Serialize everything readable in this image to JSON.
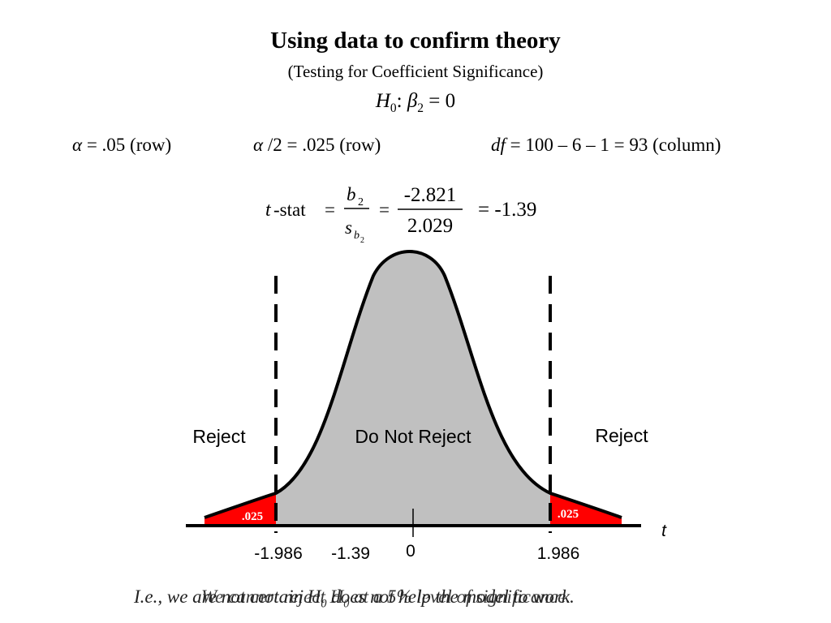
{
  "title": "Using data to confirm theory",
  "subtitle": "(Testing for Coefficient Significance)",
  "hypothesis": {
    "h": "H",
    "h_sub": "0",
    "colon": ": ",
    "beta": "β",
    "beta_sub": "2",
    "rest": " = 0"
  },
  "conditions": {
    "alpha_symbol": "α",
    "alpha_text": " = .05 (row)",
    "half_symbol": "α",
    "half_text": " /2 = .025 (row)",
    "df_symbol": "df",
    "df_text": " = 100 – 6 – 1 = 93 (column)"
  },
  "formula": {
    "t": "t",
    "stat": "-stat",
    "eq": "=",
    "num_sym": "b",
    "num_sub": "2",
    "den_sym": "s",
    "den_sub": "b",
    "den_subsub": "2",
    "num_value": "-2.821",
    "den_value": "2.029",
    "result": "= -1.39"
  },
  "diagram": {
    "region_left": "Reject",
    "region_center": "Do Not Reject",
    "region_right": "Reject",
    "tail_left": ".025",
    "tail_right": ".025",
    "axis_label": "t",
    "tick_neg_crit": "-1.986",
    "tick_stat": "-1.39",
    "tick_zero": "0",
    "tick_pos_crit": "1.986",
    "colors": {
      "tail": "#ff0000",
      "body": "#c0c0c0",
      "stroke": "#000000"
    }
  },
  "footer": {
    "text_a_prefix": "I.e., we are not certain H",
    "text_a_sub": "0",
    "text_a_suffix": " does not help the model to work.",
    "text_b_prefix": "We cannot reject H",
    "text_b_sub": "0",
    "text_b_suffix": " at a 5% level of significance."
  }
}
